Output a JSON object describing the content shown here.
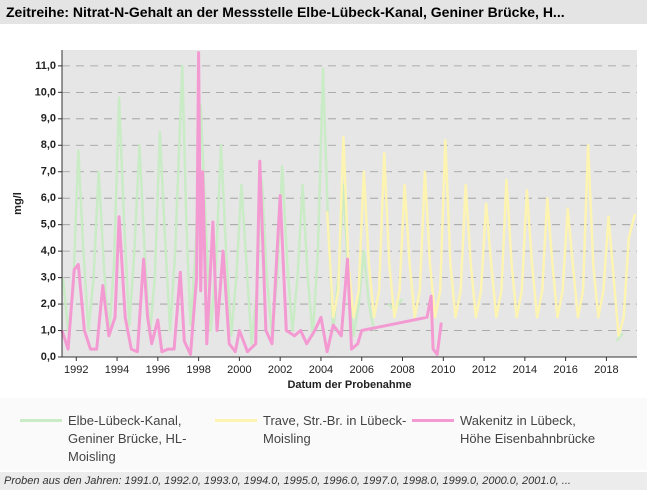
{
  "chart_data": {
    "type": "line",
    "title": "Zeitreihe: Nitrat-N-Gehalt an der Messstelle Elbe-Lübeck-Kanal, Geniner Brücke, H...",
    "ylabel": "mg/l",
    "xlabel": "Datum der Probenahme",
    "footer": "Proben aus den Jahren: 1991.0, 1992.0, 1993.0, 1994.0, 1995.0, 1996.0, 1997.0, 1998.0, 1999.0, 2000.0, 2001.0, ...",
    "xlim": [
      1991.3,
      2019.5
    ],
    "ylim": [
      0,
      11.6
    ],
    "xticks": [
      1992,
      1994,
      1996,
      1998,
      2000,
      2002,
      2004,
      2006,
      2008,
      2010,
      2012,
      2014,
      2016,
      2018
    ],
    "yticks": [
      {
        "value": 0,
        "label": "0,0"
      },
      {
        "value": 1,
        "label": "1,0"
      },
      {
        "value": 2,
        "label": "2,0"
      },
      {
        "value": 3,
        "label": "3,0"
      },
      {
        "value": 4,
        "label": "4,0"
      },
      {
        "value": 5,
        "label": "5,0"
      },
      {
        "value": 6,
        "label": "6,0"
      },
      {
        "value": 7,
        "label": "7,0"
      },
      {
        "value": 8,
        "label": "8,0"
      },
      {
        "value": 9,
        "label": "9,0"
      },
      {
        "value": 10,
        "label": "10,0"
      },
      {
        "value": 11,
        "label": "11,0"
      }
    ],
    "grid": true,
    "series": [
      {
        "name": "Elbe-Lübeck-Kanal, Geniner Brücke, HL-Moisling",
        "color": "#c9ebc5",
        "width": 2.5,
        "x": [
          1991.35,
          1991.6,
          1991.85,
          1992.1,
          1992.35,
          1992.6,
          1992.85,
          1993.1,
          1993.35,
          1993.6,
          1993.85,
          1994.1,
          1994.35,
          1994.6,
          1994.85,
          1995.1,
          1995.35,
          1995.6,
          1995.85,
          1996.1,
          1996.35,
          1996.6,
          1996.85,
          1997.2,
          1997.4,
          1997.6,
          1997.85,
          1998.1,
          1998.35,
          1998.6,
          1998.85,
          1999.1,
          1999.35,
          1999.6,
          1999.85,
          2000.1,
          2000.35,
          2000.6,
          2000.85,
          2001.1,
          2001.35,
          2001.6,
          2001.85,
          2002.1,
          2002.35,
          2002.6,
          2002.85,
          2003.1,
          2003.35,
          2003.6,
          2003.85,
          2004.1,
          2004.35,
          2004.6,
          2004.85,
          2005.1,
          2005.35,
          2005.6,
          2005.85,
          2006.1,
          2006.35,
          2006.6,
          2006.9,
          2007.3,
          2007.6,
          2008.0,
          2012.0,
          2018.5,
          2018.8
        ],
        "values": [
          3.0,
          1.0,
          2.5,
          7.8,
          4.0,
          1.0,
          3.0,
          7.0,
          3.5,
          0.8,
          3.5,
          9.8,
          5.0,
          1.2,
          4.0,
          8.0,
          4.0,
          0.8,
          3.0,
          8.5,
          4.5,
          1.0,
          4.0,
          11.0,
          5.0,
          1.2,
          4.0,
          9.5,
          5.0,
          1.0,
          3.5,
          8.0,
          4.0,
          0.8,
          3.0,
          6.5,
          3.5,
          0.5,
          2.5,
          6.7,
          3.0,
          0.8,
          3.0,
          7.2,
          3.5,
          1.0,
          3.0,
          6.5,
          3.0,
          0.8,
          4.0,
          10.9,
          5.0,
          1.0,
          3.0,
          6.5,
          3.0,
          0.8,
          2.0,
          4.0,
          2.0,
          1.0,
          null,
          2.0,
          1.8,
          2.2,
          null,
          0.6,
          0.9
        ]
      },
      {
        "name": "Trave, Str.-Br. in Lübeck-Moisling",
        "color": "#fdf4b2",
        "width": 2.5,
        "x": [
          2004.3,
          2004.6,
          2004.85,
          2005.1,
          2005.35,
          2005.6,
          2005.85,
          2006.1,
          2006.35,
          2006.6,
          2006.85,
          2007.1,
          2007.35,
          2007.6,
          2007.85,
          2008.1,
          2008.35,
          2008.6,
          2008.85,
          2009.1,
          2009.35,
          2009.6,
          2009.85,
          2010.1,
          2010.35,
          2010.6,
          2010.85,
          2011.1,
          2011.35,
          2011.6,
          2011.85,
          2012.1,
          2012.35,
          2012.6,
          2012.85,
          2013.1,
          2013.35,
          2013.6,
          2013.85,
          2014.1,
          2014.35,
          2014.6,
          2014.85,
          2015.1,
          2015.35,
          2015.6,
          2015.85,
          2016.1,
          2016.35,
          2016.6,
          2016.85,
          2017.1,
          2017.35,
          2017.6,
          2017.85,
          2018.1,
          2018.35,
          2018.6,
          2018.85,
          2019.1,
          2019.4
        ],
        "values": [
          5.5,
          1.5,
          2.5,
          8.3,
          3.5,
          1.5,
          2.5,
          7.0,
          3.5,
          1.5,
          2.5,
          7.7,
          3.5,
          1.5,
          2.5,
          6.5,
          3.5,
          1.5,
          2.5,
          7.0,
          3.5,
          1.5,
          2.5,
          8.2,
          3.5,
          1.5,
          2.5,
          6.5,
          3.5,
          1.5,
          2.5,
          5.8,
          3.5,
          1.5,
          2.5,
          6.7,
          3.5,
          1.5,
          2.5,
          6.3,
          3.5,
          1.5,
          2.5,
          6.0,
          3.5,
          1.5,
          2.5,
          5.6,
          3.5,
          1.5,
          2.5,
          8.0,
          3.5,
          1.5,
          2.5,
          5.3,
          3.0,
          0.8,
          1.5,
          4.5,
          5.4
        ]
      },
      {
        "name": "Wakenitz in Lübeck, Höhe Eisenbahnbrücke",
        "color": "#f49ad2",
        "width": 3,
        "x": [
          1991.3,
          1991.6,
          1991.9,
          1992.1,
          1992.4,
          1992.7,
          1993.0,
          1993.3,
          1993.6,
          1993.9,
          1994.1,
          1994.4,
          1994.7,
          1995.0,
          1995.3,
          1995.5,
          1995.7,
          1996.0,
          1996.2,
          1996.5,
          1996.8,
          1997.1,
          1997.3,
          1997.6,
          1997.9,
          1998.0,
          1998.1,
          1998.2,
          1998.4,
          1998.7,
          1998.9,
          1999.2,
          1999.5,
          1999.8,
          2000.0,
          2000.4,
          2000.8,
          2001.0,
          2001.3,
          2001.6,
          2002.0,
          2002.3,
          2002.7,
          2003.0,
          2003.3,
          2003.7,
          2004.0,
          2004.3,
          2004.6,
          2005.0,
          2005.3,
          2005.5,
          2005.8,
          2006.0,
          2009.2,
          2009.4,
          2009.5,
          2009.7,
          2009.9
        ],
        "values": [
          1.0,
          0.3,
          3.3,
          3.5,
          1.0,
          0.3,
          0.3,
          2.7,
          0.8,
          1.5,
          5.3,
          1.5,
          0.3,
          0.2,
          3.7,
          1.5,
          0.5,
          1.4,
          0.2,
          0.3,
          0.3,
          3.2,
          0.6,
          0.1,
          3.0,
          11.5,
          2.5,
          7.0,
          0.5,
          5.1,
          1.0,
          4.0,
          0.5,
          0.2,
          1.0,
          0.2,
          0.5,
          7.4,
          1.0,
          0.5,
          6.1,
          1.0,
          0.8,
          1.0,
          0.5,
          1.0,
          1.5,
          0.2,
          1.2,
          0.8,
          3.7,
          0.3,
          0.5,
          1.0,
          1.5,
          2.3,
          0.3,
          0.1,
          1.3
        ]
      }
    ]
  }
}
